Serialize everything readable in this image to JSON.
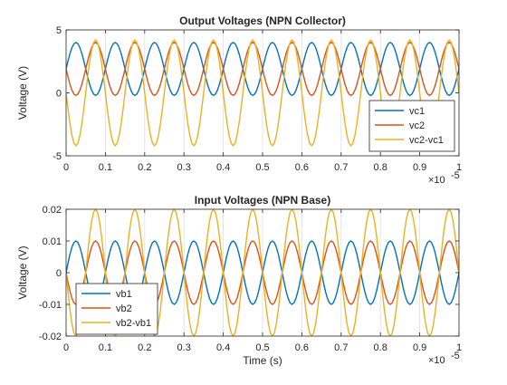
{
  "chart_data": [
    {
      "type": "line",
      "title": "Output Voltages (NPN Collector)",
      "xlabel": "",
      "ylabel": "Voltage (V)",
      "xlim": [
        0,
        1
      ],
      "ylim": [
        -5,
        5
      ],
      "x_exponent_label": "×10",
      "x_exponent": "-5",
      "x_ticks": [
        "0",
        "0.1",
        "0.2",
        "0.3",
        "0.4",
        "0.5",
        "0.6",
        "0.7",
        "0.8",
        "0.9",
        "1"
      ],
      "y_ticks": [
        "-5",
        "0",
        "5"
      ],
      "y_tick_values": [
        -5,
        0,
        5
      ],
      "grid_x": true,
      "grid_y": false,
      "legend_position": "bottom-right",
      "x_sample_step": 0.005,
      "series": [
        {
          "name": "vc1",
          "color": "#0072BD",
          "offset": 1.9,
          "amplitude": 2.1,
          "cycles_per_unit": 10,
          "phase_deg": 0
        },
        {
          "name": "vc2",
          "color": "#D95319",
          "offset": 1.9,
          "amplitude": 2.1,
          "cycles_per_unit": 10,
          "phase_deg": 180
        },
        {
          "name": "vc2-vc1",
          "color": "#EDB120",
          "offset": 0,
          "amplitude": 4.2,
          "cycles_per_unit": 10,
          "phase_deg": 180
        }
      ]
    },
    {
      "type": "line",
      "title": "Input Voltages (NPN Base)",
      "xlabel": "Time (s)",
      "ylabel": "Voltage (V)",
      "xlim": [
        0,
        1
      ],
      "ylim": [
        -0.02,
        0.02
      ],
      "x_exponent_label": "×10",
      "x_exponent": "-5",
      "x_ticks": [
        "0",
        "0.1",
        "0.2",
        "0.3",
        "0.4",
        "0.5",
        "0.6",
        "0.7",
        "0.8",
        "0.9",
        "1"
      ],
      "y_ticks": [
        "-0.02",
        "-0.01",
        "0",
        "0.01",
        "0.02"
      ],
      "y_tick_values": [
        -0.02,
        -0.01,
        0,
        0.01,
        0.02
      ],
      "grid_x": true,
      "grid_y": false,
      "legend_position": "bottom-left",
      "x_sample_step": 0.005,
      "series": [
        {
          "name": "vb1",
          "color": "#0072BD",
          "offset": 0,
          "amplitude": 0.01,
          "cycles_per_unit": 10,
          "phase_deg": 0
        },
        {
          "name": "vb2",
          "color": "#D95319",
          "offset": 0,
          "amplitude": 0.01,
          "cycles_per_unit": 10,
          "phase_deg": 180
        },
        {
          "name": "vb2-vb1",
          "color": "#EDB120",
          "offset": 0,
          "amplitude": 0.02,
          "cycles_per_unit": 10,
          "phase_deg": 180
        }
      ]
    }
  ]
}
